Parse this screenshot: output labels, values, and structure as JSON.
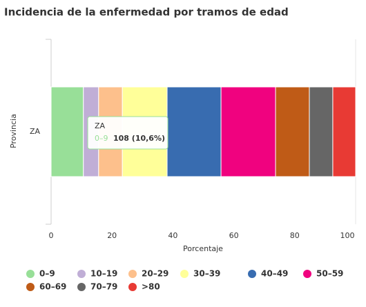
{
  "chart_data": {
    "type": "stacked-bar-horizontal",
    "title": "Incidencia de la enfermedad por tramos de edad",
    "y_label": "Provincia",
    "x_label": "Porcentaje",
    "categories": [
      "ZA"
    ],
    "xlim": [
      0,
      100
    ],
    "xticks": [
      0,
      20,
      40,
      60,
      80,
      100
    ],
    "grid": false,
    "series": [
      {
        "name": "0–9",
        "color": "#98df98",
        "values": [
          10.6
        ],
        "value_labels": [
          "108 (10,6%)"
        ]
      },
      {
        "name": "10–19",
        "color": "#c0aed6",
        "values": [
          5.0
        ]
      },
      {
        "name": "20–29",
        "color": "#fdc08c",
        "values": [
          7.8
        ]
      },
      {
        "name": "30–39",
        "color": "#ffff99",
        "values": [
          14.7
        ]
      },
      {
        "name": "40–49",
        "color": "#386cb0",
        "values": [
          17.7
        ]
      },
      {
        "name": "50–59",
        "color": "#f0027f",
        "values": [
          17.9
        ]
      },
      {
        "name": "60–69",
        "color": "#bf5b17",
        "values": [
          11.1
        ]
      },
      {
        "name": "70–79",
        "color": "#666666",
        "values": [
          7.7
        ]
      },
      {
        "name": ">80",
        "color": "#e83a34",
        "values": [
          7.5
        ]
      }
    ]
  }
}
